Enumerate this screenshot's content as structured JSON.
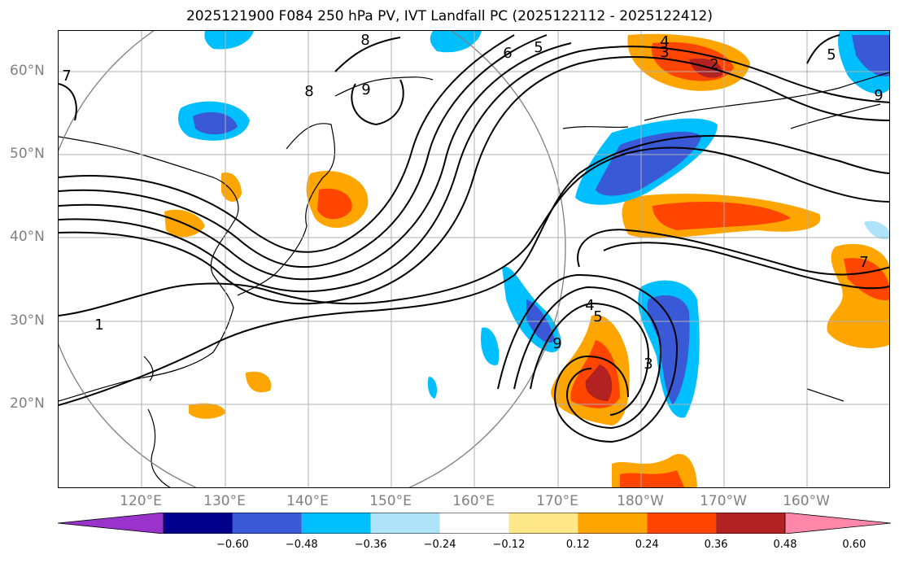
{
  "title": "2025121900 F084 250 hPa PV, IVT Landfall PC (2025122112 - 2025122412)",
  "lat_labels": [
    "60°N",
    "50°N",
    "40°N",
    "30°N",
    "20°N"
  ],
  "lon_labels": [
    "120°E",
    "130°E",
    "140°E",
    "150°E",
    "160°E",
    "170°E",
    "180°W",
    "170°W",
    "160°W"
  ],
  "contour_labels": [
    "1",
    "2",
    "3",
    "4",
    "5",
    "6",
    "7",
    "8",
    "9"
  ],
  "colorbar": {
    "tick_labels": [
      "−0.60",
      "−0.48",
      "−0.36",
      "−0.24",
      "−0.12",
      "0.12",
      "0.24",
      "0.36",
      "0.48",
      "0.60"
    ],
    "colors": [
      "#9933cc",
      "#00008b",
      "#3a59d6",
      "#00bfff",
      "#aee3fa",
      "#ffffff",
      "#ffe88a",
      "#ffa500",
      "#ff4500",
      "#b22222",
      "#ff88aa"
    ]
  }
}
